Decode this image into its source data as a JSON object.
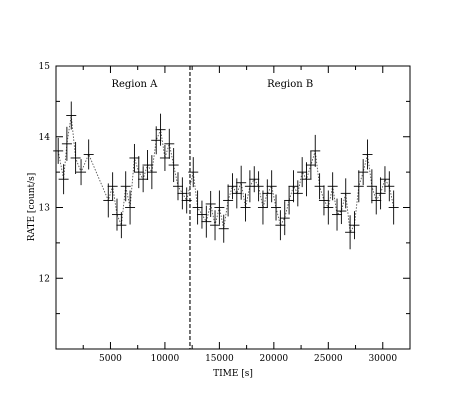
{
  "chart_data": {
    "type": "scatter",
    "title": "",
    "xlabel": "TIME [s]",
    "ylabel": "RATE [count/s]",
    "xlim": [
      0,
      32500
    ],
    "ylim": [
      11,
      15
    ],
    "x_ticks": [
      5000,
      10000,
      15000,
      20000,
      25000,
      30000
    ],
    "x_tick_labels": [
      "5000",
      "10000",
      "15000",
      "20000",
      "25000",
      "30000"
    ],
    "y_ticks": [
      12,
      13,
      14,
      15
    ],
    "y_tick_labels": [
      "12",
      "13",
      "14",
      "15"
    ],
    "grid": false,
    "legend": "none",
    "annotations": [
      {
        "text": "Region A",
        "x": 7200,
        "y": 14.7
      },
      {
        "text": "Region B",
        "x": 21500,
        "y": 14.7
      }
    ],
    "divider_x": 12300,
    "series": [
      {
        "style": "points with error bars and dotted connecting line",
        "x": [
          200,
          700,
          1000,
          1400,
          1800,
          2300,
          3000,
          4800,
          5200,
          5600,
          6000,
          6400,
          6800,
          7200,
          7600,
          8000,
          8400,
          8800,
          9200,
          9600,
          10000,
          10400,
          10800,
          11200,
          11600,
          12000,
          12600,
          13000,
          13400,
          13800,
          14200,
          14600,
          15000,
          15400,
          15800,
          16200,
          16600,
          17000,
          17400,
          17800,
          18200,
          18600,
          19000,
          19400,
          19800,
          20200,
          20600,
          21000,
          21400,
          21800,
          22200,
          22600,
          23000,
          23400,
          23800,
          24200,
          24600,
          25000,
          25400,
          25800,
          26200,
          26600,
          27000,
          27400,
          27800,
          28200,
          28600,
          29000,
          29400,
          29800,
          30200,
          30600,
          31000
        ],
        "y": [
          13.8,
          13.4,
          13.9,
          14.3,
          13.7,
          13.5,
          13.75,
          13.1,
          13.3,
          12.9,
          12.75,
          13.3,
          13.0,
          13.7,
          13.5,
          13.4,
          13.6,
          13.5,
          13.95,
          14.1,
          13.7,
          13.9,
          13.6,
          13.3,
          13.2,
          13.1,
          13.5,
          13.0,
          12.9,
          12.8,
          13.05,
          12.75,
          13.0,
          12.7,
          13.1,
          13.3,
          13.2,
          13.35,
          13.0,
          13.3,
          13.4,
          13.3,
          13.0,
          13.2,
          13.3,
          13.0,
          12.75,
          12.85,
          13.1,
          13.3,
          13.2,
          13.5,
          13.4,
          13.6,
          13.8,
          13.3,
          13.1,
          13.0,
          13.3,
          12.9,
          12.95,
          13.2,
          12.65,
          12.75,
          13.3,
          13.5,
          13.75,
          13.3,
          13.1,
          13.2,
          13.4,
          13.3,
          13.0
        ]
      }
    ]
  }
}
